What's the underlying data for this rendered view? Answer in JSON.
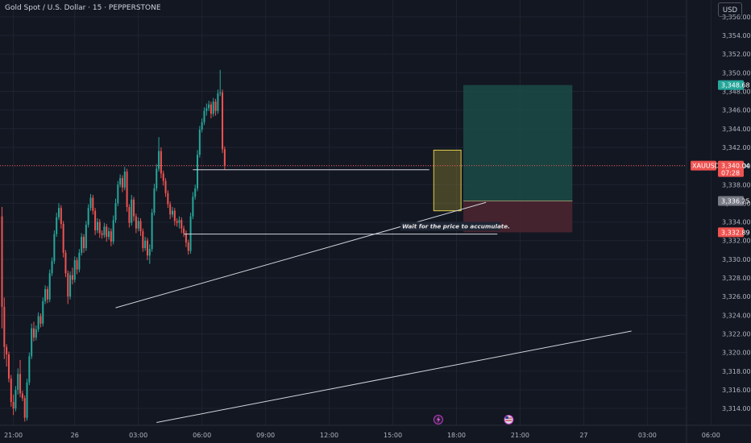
{
  "header": {
    "title": "Gold Spot / U.S. Dollar · 15 · PEPPERSTONE",
    "currency": "USD"
  },
  "colors": {
    "background": "#131722",
    "up": "#26a69a",
    "down": "#ef5350",
    "grid": "#1f2330",
    "target_zone": "#1b4b45",
    "stop_zone": "#4a2530",
    "accumulation_box": "#b9a938",
    "lines": "#d1d4dc"
  },
  "chart_data": {
    "type": "candlestick",
    "title": "Gold Spot / U.S. Dollar · 15 · PEPPERSTONE",
    "symbol": "XAUUSD",
    "ylim": [
      3312.2,
      3357.8
    ],
    "y_ticks": [
      "3,314.00",
      "3,316.00",
      "3,318.00",
      "3,320.00",
      "3,322.00",
      "3,324.00",
      "3,326.00",
      "3,328.00",
      "3,330.00",
      "3,332.00",
      "3,334.00",
      "3,336.00",
      "3,338.00",
      "3,340.00",
      "3,342.00",
      "3,344.00",
      "3,346.00",
      "3,348.00",
      "3,350.00",
      "3,352.00",
      "3,354.00",
      "3,356.00"
    ],
    "x_ticks": [
      "21:00",
      "26",
      "03:00",
      "06:00",
      "09:00",
      "12:00",
      "15:00",
      "18:00",
      "21:00",
      "27",
      "03:00",
      "06:00"
    ],
    "x_tick_bars": [
      5,
      32,
      60,
      88,
      116,
      144,
      172,
      200,
      228,
      256,
      284,
      312
    ],
    "bar_interval_minutes": 15,
    "price_tags": [
      {
        "label": "3,348.68",
        "value": 3348.68,
        "color": "#26a69a"
      },
      {
        "label": "XAUUSD",
        "value": 3340.04,
        "color": "#ef5350"
      },
      {
        "label": "3,340.04",
        "value": 3340.04,
        "color": "#ef5350"
      },
      {
        "label": "07:28",
        "value": 3339.2,
        "color": "#ef5350"
      },
      {
        "label": "3,336.25",
        "value": 3336.25,
        "color": "#787b86"
      },
      {
        "label": "3,332.89",
        "value": 3332.89,
        "color": "#ef5350"
      }
    ],
    "current_price": 3340.04,
    "annotation": "Wait for the price to accumulate.",
    "position_tool": {
      "entry": 3336.25,
      "target": 3348.68,
      "stop": 3332.89,
      "bar_start": 203,
      "bar_end": 251
    },
    "accumulation_box": {
      "bar_start": 190,
      "bar_end": 202,
      "top": 3341.7,
      "bottom": 3335.2
    },
    "horizontal_lines": [
      {
        "value": 3339.6,
        "bar_start": 84,
        "bar_end": 188
      },
      {
        "value": 3332.7,
        "bar_start": 80,
        "bar_end": 218
      }
    ],
    "trend_lines": [
      {
        "bar1": 50,
        "price1": 3324.8,
        "bar2": 213,
        "price2": 3336.1
      },
      {
        "bar1": 68,
        "price1": 3312.5,
        "bar2": 277,
        "price2": 3322.3
      }
    ],
    "events": [
      {
        "bar": 192,
        "kind": "flash-event",
        "glyph": "⚡"
      },
      {
        "bar": 223,
        "kind": "us-economic-event",
        "glyph": "🇺🇸"
      }
    ],
    "candles": [
      {
        "o": 3334.6,
        "h": 3335.6,
        "l": 3322.6,
        "c": 3324.9
      },
      {
        "o": 3324.9,
        "h": 3325.9,
        "l": 3319.3,
        "c": 3320.6
      },
      {
        "o": 3320.6,
        "h": 3320.9,
        "l": 3318.5,
        "c": 3319.8
      },
      {
        "o": 3319.8,
        "h": 3320.1,
        "l": 3316.8,
        "c": 3317.2
      },
      {
        "o": 3317.2,
        "h": 3317.6,
        "l": 3314.2,
        "c": 3314.7
      },
      {
        "o": 3314.7,
        "h": 3315.5,
        "l": 3313.3,
        "c": 3314.0
      },
      {
        "o": 3314.0,
        "h": 3316.4,
        "l": 3313.7,
        "c": 3316.0
      },
      {
        "o": 3316.0,
        "h": 3318.3,
        "l": 3315.5,
        "c": 3317.7
      },
      {
        "o": 3317.7,
        "h": 3319.2,
        "l": 3315.2,
        "c": 3315.6
      },
      {
        "o": 3315.6,
        "h": 3315.9,
        "l": 3314.8,
        "c": 3315.1
      },
      {
        "o": 3315.1,
        "h": 3315.4,
        "l": 3312.6,
        "c": 3313.0
      },
      {
        "o": 3313.0,
        "h": 3317.2,
        "l": 3312.7,
        "c": 3316.8
      },
      {
        "o": 3316.8,
        "h": 3320.0,
        "l": 3316.5,
        "c": 3319.6
      },
      {
        "o": 3319.6,
        "h": 3323.1,
        "l": 3319.3,
        "c": 3322.6
      },
      {
        "o": 3322.6,
        "h": 3323.3,
        "l": 3321.2,
        "c": 3321.6
      },
      {
        "o": 3321.6,
        "h": 3322.9,
        "l": 3321.3,
        "c": 3322.5
      },
      {
        "o": 3322.5,
        "h": 3324.3,
        "l": 3322.2,
        "c": 3323.9
      },
      {
        "o": 3323.9,
        "h": 3324.2,
        "l": 3322.7,
        "c": 3323.1
      },
      {
        "o": 3323.1,
        "h": 3325.9,
        "l": 3322.8,
        "c": 3325.5
      },
      {
        "o": 3325.5,
        "h": 3327.2,
        "l": 3325.2,
        "c": 3326.8
      },
      {
        "o": 3326.8,
        "h": 3327.1,
        "l": 3325.3,
        "c": 3325.7
      },
      {
        "o": 3325.7,
        "h": 3328.9,
        "l": 3325.4,
        "c": 3328.5
      },
      {
        "o": 3328.5,
        "h": 3330.2,
        "l": 3328.2,
        "c": 3329.8
      },
      {
        "o": 3329.8,
        "h": 3333.1,
        "l": 3329.5,
        "c": 3332.7
      },
      {
        "o": 3332.7,
        "h": 3335.0,
        "l": 3332.4,
        "c": 3334.5
      },
      {
        "o": 3334.5,
        "h": 3336.0,
        "l": 3334.2,
        "c": 3335.5
      },
      {
        "o": 3335.5,
        "h": 3335.8,
        "l": 3333.3,
        "c": 3333.8
      },
      {
        "o": 3333.8,
        "h": 3334.1,
        "l": 3330.2,
        "c": 3330.7
      },
      {
        "o": 3330.7,
        "h": 3331.0,
        "l": 3328.1,
        "c": 3328.5
      },
      {
        "o": 3328.5,
        "h": 3328.8,
        "l": 3325.2,
        "c": 3326.0
      },
      {
        "o": 3326.0,
        "h": 3328.7,
        "l": 3325.7,
        "c": 3328.3
      },
      {
        "o": 3328.3,
        "h": 3329.1,
        "l": 3327.3,
        "c": 3327.8
      },
      {
        "o": 3327.8,
        "h": 3330.3,
        "l": 3327.5,
        "c": 3329.9
      },
      {
        "o": 3329.9,
        "h": 3330.2,
        "l": 3328.4,
        "c": 3328.9
      },
      {
        "o": 3328.9,
        "h": 3331.1,
        "l": 3328.6,
        "c": 3330.7
      },
      {
        "o": 3330.7,
        "h": 3332.8,
        "l": 3330.4,
        "c": 3332.4
      },
      {
        "o": 3332.4,
        "h": 3332.7,
        "l": 3330.7,
        "c": 3331.2
      },
      {
        "o": 3331.2,
        "h": 3334.1,
        "l": 3330.9,
        "c": 3333.7
      },
      {
        "o": 3333.7,
        "h": 3335.9,
        "l": 3333.4,
        "c": 3335.5
      },
      {
        "o": 3335.5,
        "h": 3337.0,
        "l": 3335.2,
        "c": 3336.6
      },
      {
        "o": 3336.6,
        "h": 3336.9,
        "l": 3334.8,
        "c": 3335.2
      },
      {
        "o": 3335.2,
        "h": 3335.5,
        "l": 3332.6,
        "c": 3333.1
      },
      {
        "o": 3333.1,
        "h": 3334.4,
        "l": 3332.8,
        "c": 3334.0
      },
      {
        "o": 3334.0,
        "h": 3334.3,
        "l": 3332.3,
        "c": 3332.8
      },
      {
        "o": 3332.8,
        "h": 3333.1,
        "l": 3332.2,
        "c": 3332.6
      },
      {
        "o": 3332.6,
        "h": 3333.9,
        "l": 3332.3,
        "c": 3333.5
      },
      {
        "o": 3333.5,
        "h": 3333.8,
        "l": 3331.9,
        "c": 3332.4
      },
      {
        "o": 3332.4,
        "h": 3333.4,
        "l": 3332.1,
        "c": 3333.0
      },
      {
        "o": 3333.0,
        "h": 3333.3,
        "l": 3331.4,
        "c": 3331.9
      },
      {
        "o": 3331.9,
        "h": 3334.7,
        "l": 3331.6,
        "c": 3334.2
      },
      {
        "o": 3334.2,
        "h": 3336.5,
        "l": 3333.9,
        "c": 3336.0
      },
      {
        "o": 3336.0,
        "h": 3338.4,
        "l": 3335.7,
        "c": 3338.0
      },
      {
        "o": 3338.0,
        "h": 3339.1,
        "l": 3337.7,
        "c": 3338.7
      },
      {
        "o": 3338.7,
        "h": 3339.0,
        "l": 3337.2,
        "c": 3337.7
      },
      {
        "o": 3337.7,
        "h": 3339.9,
        "l": 3337.4,
        "c": 3339.4
      },
      {
        "o": 3339.4,
        "h": 3339.7,
        "l": 3335.1,
        "c": 3335.6
      },
      {
        "o": 3335.6,
        "h": 3335.9,
        "l": 3333.4,
        "c": 3333.9
      },
      {
        "o": 3333.9,
        "h": 3336.9,
        "l": 3333.6,
        "c": 3336.4
      },
      {
        "o": 3336.4,
        "h": 3336.7,
        "l": 3334.1,
        "c": 3334.6
      },
      {
        "o": 3334.6,
        "h": 3334.9,
        "l": 3332.8,
        "c": 3333.3
      },
      {
        "o": 3333.3,
        "h": 3334.5,
        "l": 3333.0,
        "c": 3334.1
      },
      {
        "o": 3334.1,
        "h": 3334.4,
        "l": 3332.5,
        "c": 3333.0
      },
      {
        "o": 3333.0,
        "h": 3333.3,
        "l": 3330.8,
        "c": 3331.2
      },
      {
        "o": 3331.2,
        "h": 3332.4,
        "l": 3330.9,
        "c": 3332.0
      },
      {
        "o": 3332.0,
        "h": 3332.3,
        "l": 3329.9,
        "c": 3330.4
      },
      {
        "o": 3330.4,
        "h": 3331.6,
        "l": 3329.5,
        "c": 3331.1
      },
      {
        "o": 3331.1,
        "h": 3335.4,
        "l": 3330.8,
        "c": 3335.0
      },
      {
        "o": 3335.0,
        "h": 3338.1,
        "l": 3334.7,
        "c": 3337.6
      },
      {
        "o": 3337.6,
        "h": 3340.2,
        "l": 3337.3,
        "c": 3339.7
      },
      {
        "o": 3339.7,
        "h": 3343.1,
        "l": 3339.4,
        "c": 3341.6
      },
      {
        "o": 3341.6,
        "h": 3342.0,
        "l": 3338.7,
        "c": 3339.2
      },
      {
        "o": 3339.2,
        "h": 3339.5,
        "l": 3337.9,
        "c": 3338.4
      },
      {
        "o": 3338.4,
        "h": 3338.7,
        "l": 3336.7,
        "c": 3337.1
      },
      {
        "o": 3337.1,
        "h": 3337.4,
        "l": 3335.5,
        "c": 3335.9
      },
      {
        "o": 3335.9,
        "h": 3336.2,
        "l": 3334.3,
        "c": 3334.8
      },
      {
        "o": 3334.8,
        "h": 3335.6,
        "l": 3334.5,
        "c": 3335.2
      },
      {
        "o": 3335.2,
        "h": 3335.5,
        "l": 3333.6,
        "c": 3334.1
      },
      {
        "o": 3334.1,
        "h": 3334.4,
        "l": 3333.5,
        "c": 3333.9
      },
      {
        "o": 3333.9,
        "h": 3334.6,
        "l": 3333.3,
        "c": 3334.2
      },
      {
        "o": 3334.2,
        "h": 3334.5,
        "l": 3332.8,
        "c": 3333.3
      },
      {
        "o": 3333.3,
        "h": 3333.6,
        "l": 3332.4,
        "c": 3332.8
      },
      {
        "o": 3332.8,
        "h": 3333.1,
        "l": 3331.3,
        "c": 3331.8
      },
      {
        "o": 3331.8,
        "h": 3332.1,
        "l": 3330.5,
        "c": 3330.9
      },
      {
        "o": 3330.9,
        "h": 3335.0,
        "l": 3330.6,
        "c": 3334.6
      },
      {
        "o": 3334.6,
        "h": 3337.2,
        "l": 3334.3,
        "c": 3336.7
      },
      {
        "o": 3336.7,
        "h": 3338.0,
        "l": 3336.4,
        "c": 3337.6
      },
      {
        "o": 3337.6,
        "h": 3341.7,
        "l": 3337.3,
        "c": 3341.2
      },
      {
        "o": 3341.2,
        "h": 3344.3,
        "l": 3340.9,
        "c": 3343.9
      },
      {
        "o": 3343.9,
        "h": 3345.1,
        "l": 3343.6,
        "c": 3344.7
      },
      {
        "o": 3344.7,
        "h": 3346.3,
        "l": 3344.4,
        "c": 3345.9
      },
      {
        "o": 3345.9,
        "h": 3346.7,
        "l": 3345.4,
        "c": 3346.2
      },
      {
        "o": 3346.2,
        "h": 3347.0,
        "l": 3345.9,
        "c": 3346.6
      },
      {
        "o": 3346.6,
        "h": 3346.9,
        "l": 3345.1,
        "c": 3345.6
      },
      {
        "o": 3345.6,
        "h": 3347.3,
        "l": 3345.3,
        "c": 3346.9
      },
      {
        "o": 3346.9,
        "h": 3347.2,
        "l": 3345.4,
        "c": 3345.9
      },
      {
        "o": 3345.9,
        "h": 3348.2,
        "l": 3345.6,
        "c": 3347.8
      },
      {
        "o": 3347.8,
        "h": 3350.3,
        "l": 3347.5,
        "c": 3347.9
      },
      {
        "o": 3347.9,
        "h": 3348.2,
        "l": 3341.4,
        "c": 3341.8
      },
      {
        "o": 3341.8,
        "h": 3342.1,
        "l": 3339.6,
        "c": 3340.04
      }
    ]
  }
}
